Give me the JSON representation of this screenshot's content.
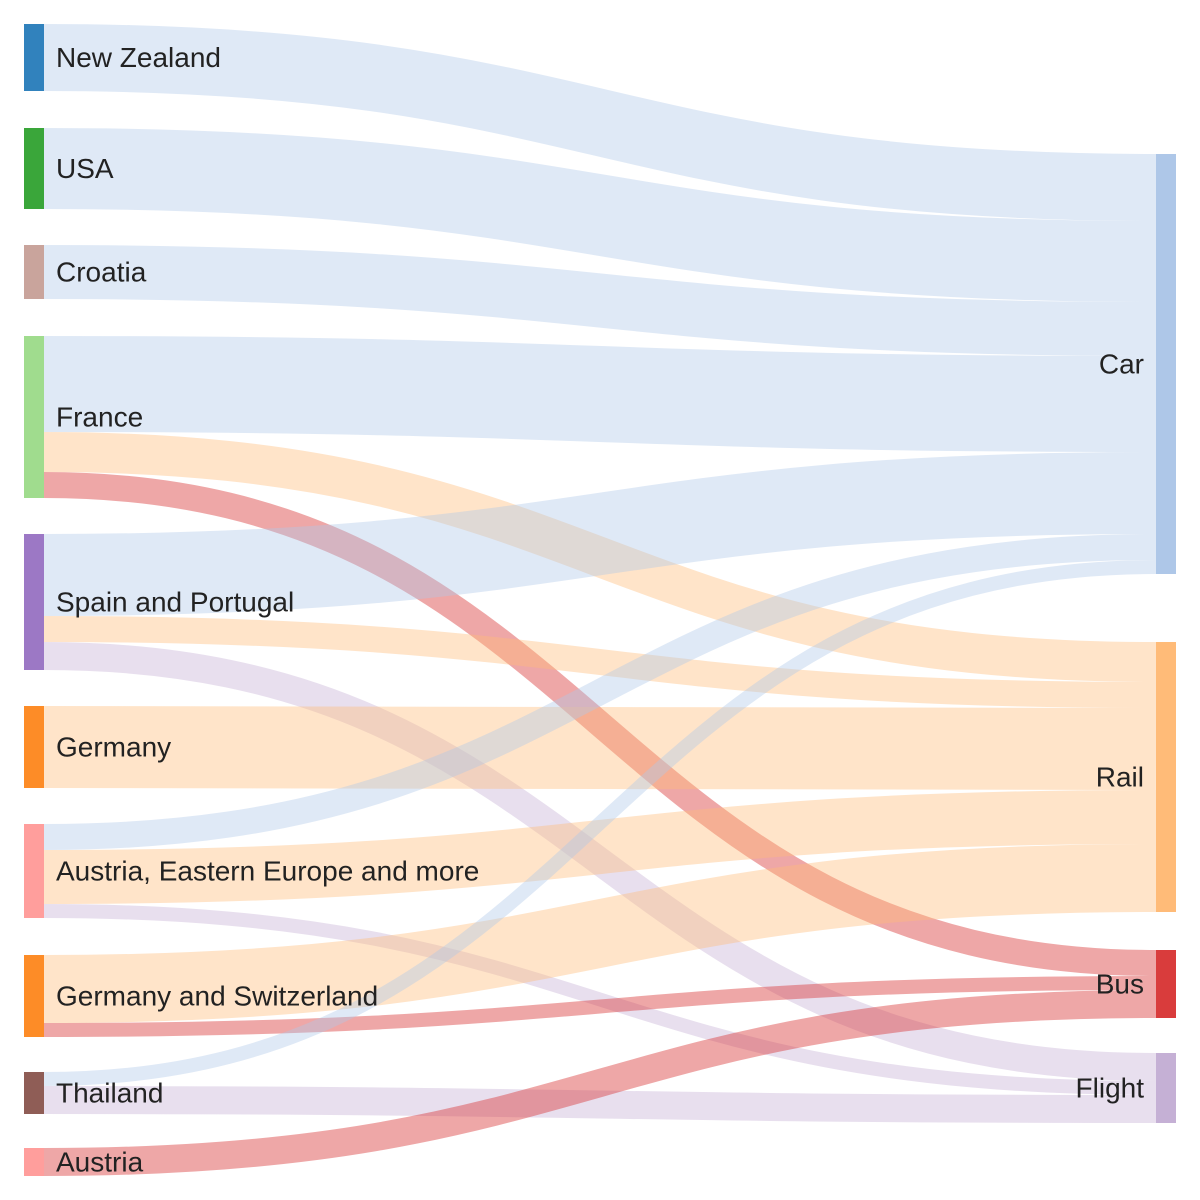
{
  "chart_data": {
    "type": "sankey",
    "nodes": [
      {
        "id": "nz",
        "label": "New Zealand",
        "color": "#3182bd"
      },
      {
        "id": "usa",
        "label": "USA",
        "color": "#3aa63a"
      },
      {
        "id": "croatia",
        "label": "Croatia",
        "color": "#c9a49c"
      },
      {
        "id": "france",
        "label": "France",
        "color": "#a0dc8e"
      },
      {
        "id": "spain",
        "label": "Spain and Portugal",
        "color": "#9c78c5"
      },
      {
        "id": "germany",
        "label": "Germany",
        "color": "#fd8c27"
      },
      {
        "id": "austria_ee",
        "label": "Austria, Eastern Europe and more",
        "color": "#ff9e9c"
      },
      {
        "id": "germany_ch",
        "label": "Germany and Switzerland",
        "color": "#fd8c27"
      },
      {
        "id": "thailand",
        "label": "Thailand",
        "color": "#8f5d56"
      },
      {
        "id": "austria",
        "label": "Austria",
        "color": "#ff9e9c"
      },
      {
        "id": "car",
        "label": "Car",
        "color": "#aec7e8"
      },
      {
        "id": "rail",
        "label": "Rail",
        "color": "#ffbb78"
      },
      {
        "id": "bus",
        "label": "Bus",
        "color": "#d93c3c"
      },
      {
        "id": "flight",
        "label": "Flight",
        "color": "#c5b0d5"
      }
    ],
    "links": [
      {
        "source": "nz",
        "target": "car",
        "value": 6.7
      },
      {
        "source": "usa",
        "target": "car",
        "value": 8.1
      },
      {
        "source": "croatia",
        "target": "car",
        "value": 5.4
      },
      {
        "source": "france",
        "target": "car",
        "value": 9.6
      },
      {
        "source": "france",
        "target": "rail",
        "value": 4.0
      },
      {
        "source": "france",
        "target": "bus",
        "value": 2.6
      },
      {
        "source": "spain",
        "target": "car",
        "value": 8.2
      },
      {
        "source": "spain",
        "target": "rail",
        "value": 2.6
      },
      {
        "source": "spain",
        "target": "flight",
        "value": 2.8
      },
      {
        "source": "germany",
        "target": "rail",
        "value": 8.2
      },
      {
        "source": "austria_ee",
        "target": "car",
        "value": 2.6
      },
      {
        "source": "austria_ee",
        "target": "rail",
        "value": 5.4
      },
      {
        "source": "austria_ee",
        "target": "flight",
        "value": 1.4
      },
      {
        "source": "germany_ch",
        "target": "rail",
        "value": 6.8
      },
      {
        "source": "germany_ch",
        "target": "bus",
        "value": 1.4
      },
      {
        "source": "thailand",
        "target": "car",
        "value": 1.4
      },
      {
        "source": "thailand",
        "target": "flight",
        "value": 2.8
      },
      {
        "source": "austria",
        "target": "bus",
        "value": 2.8
      }
    ]
  }
}
